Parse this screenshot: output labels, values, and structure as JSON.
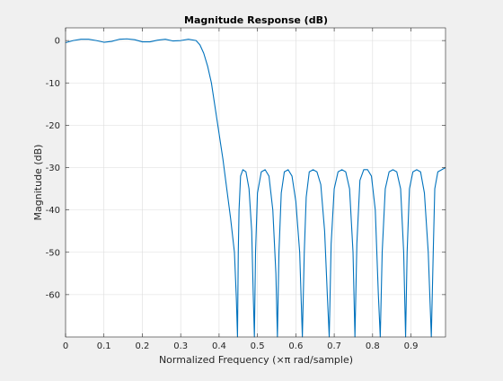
{
  "chart_data": {
    "type": "line",
    "title": "Magnitude Response (dB)",
    "xlabel": "Normalized Frequency (×π rad/sample)",
    "ylabel": "Magnitude (dB)",
    "xlim": [
      0,
      0.99
    ],
    "ylim": [
      -70,
      3
    ],
    "grid": true,
    "xticks": [
      0,
      0.1,
      0.2,
      0.3,
      0.4,
      0.5,
      0.6,
      0.7,
      0.8,
      0.9
    ],
    "xtick_labels": [
      "0",
      "0.1",
      "0.2",
      "0.3",
      "0.4",
      "0.5",
      "0.6",
      "0.7",
      "0.8",
      "0.9"
    ],
    "yticks": [
      0,
      -10,
      -20,
      -30,
      -40,
      -50,
      -60
    ],
    "ytick_labels": [
      "0",
      "-10",
      "-20",
      "-30",
      "-40",
      "-50",
      "-60"
    ],
    "line_color": "#0072bd",
    "series": [
      {
        "x": [
          0,
          0.02,
          0.04,
          0.06,
          0.08,
          0.1,
          0.12,
          0.14,
          0.16,
          0.18,
          0.2,
          0.22,
          0.24,
          0.26,
          0.28,
          0.3,
          0.32,
          0.34,
          0.35,
          0.36,
          0.37,
          0.38,
          0.39,
          0.4,
          0.41,
          0.42,
          0.43,
          0.44,
          0.445,
          0.448,
          0.45,
          0.452,
          0.456,
          0.462,
          0.47,
          0.478,
          0.485,
          0.489,
          0.492,
          0.495,
          0.5,
          0.51,
          0.52,
          0.53,
          0.54,
          0.548,
          0.552,
          0.556,
          0.562,
          0.57,
          0.58,
          0.59,
          0.6,
          0.61,
          0.617,
          0.622,
          0.627,
          0.635,
          0.645,
          0.655,
          0.665,
          0.675,
          0.682,
          0.687,
          0.692,
          0.7,
          0.71,
          0.72,
          0.73,
          0.74,
          0.749,
          0.754,
          0.759,
          0.767,
          0.777,
          0.787,
          0.797,
          0.807,
          0.815,
          0.82,
          0.825,
          0.833,
          0.843,
          0.853,
          0.863,
          0.873,
          0.881,
          0.886,
          0.89,
          0.896,
          0.905,
          0.915,
          0.925,
          0.935,
          0.945,
          0.953,
          0.958,
          0.962,
          0.97,
          0.98,
          0.99
        ],
        "y": [
          -0.5,
          0,
          0.3,
          0.3,
          0,
          -0.4,
          -0.2,
          0.3,
          0.4,
          0.2,
          -0.3,
          -0.3,
          0.1,
          0.3,
          -0.1,
          0,
          0.3,
          0,
          -1,
          -3,
          -6,
          -10,
          -16,
          -22,
          -28,
          -35,
          -42,
          -50,
          -61,
          -70,
          -50,
          -40,
          -32,
          -30.5,
          -31,
          -35,
          -45,
          -60,
          -70,
          -50,
          -36,
          -31,
          -30.5,
          -32,
          -40,
          -55,
          -70,
          -50,
          -36,
          -31,
          -30.5,
          -32,
          -38,
          -50,
          -70,
          -50,
          -37,
          -31,
          -30.5,
          -31,
          -34,
          -45,
          -60,
          -70,
          -48,
          -35,
          -31,
          -30.5,
          -31,
          -35,
          -50,
          -70,
          -48,
          -33,
          -30.5,
          -30.5,
          -32,
          -40,
          -60,
          -70,
          -50,
          -35,
          -31,
          -30.5,
          -31,
          -35,
          -50,
          -70,
          -50,
          -35,
          -31,
          -30.5,
          -31,
          -36,
          -50,
          -70,
          -50,
          -35,
          -31,
          -30.5,
          -30
        ]
      }
    ]
  }
}
